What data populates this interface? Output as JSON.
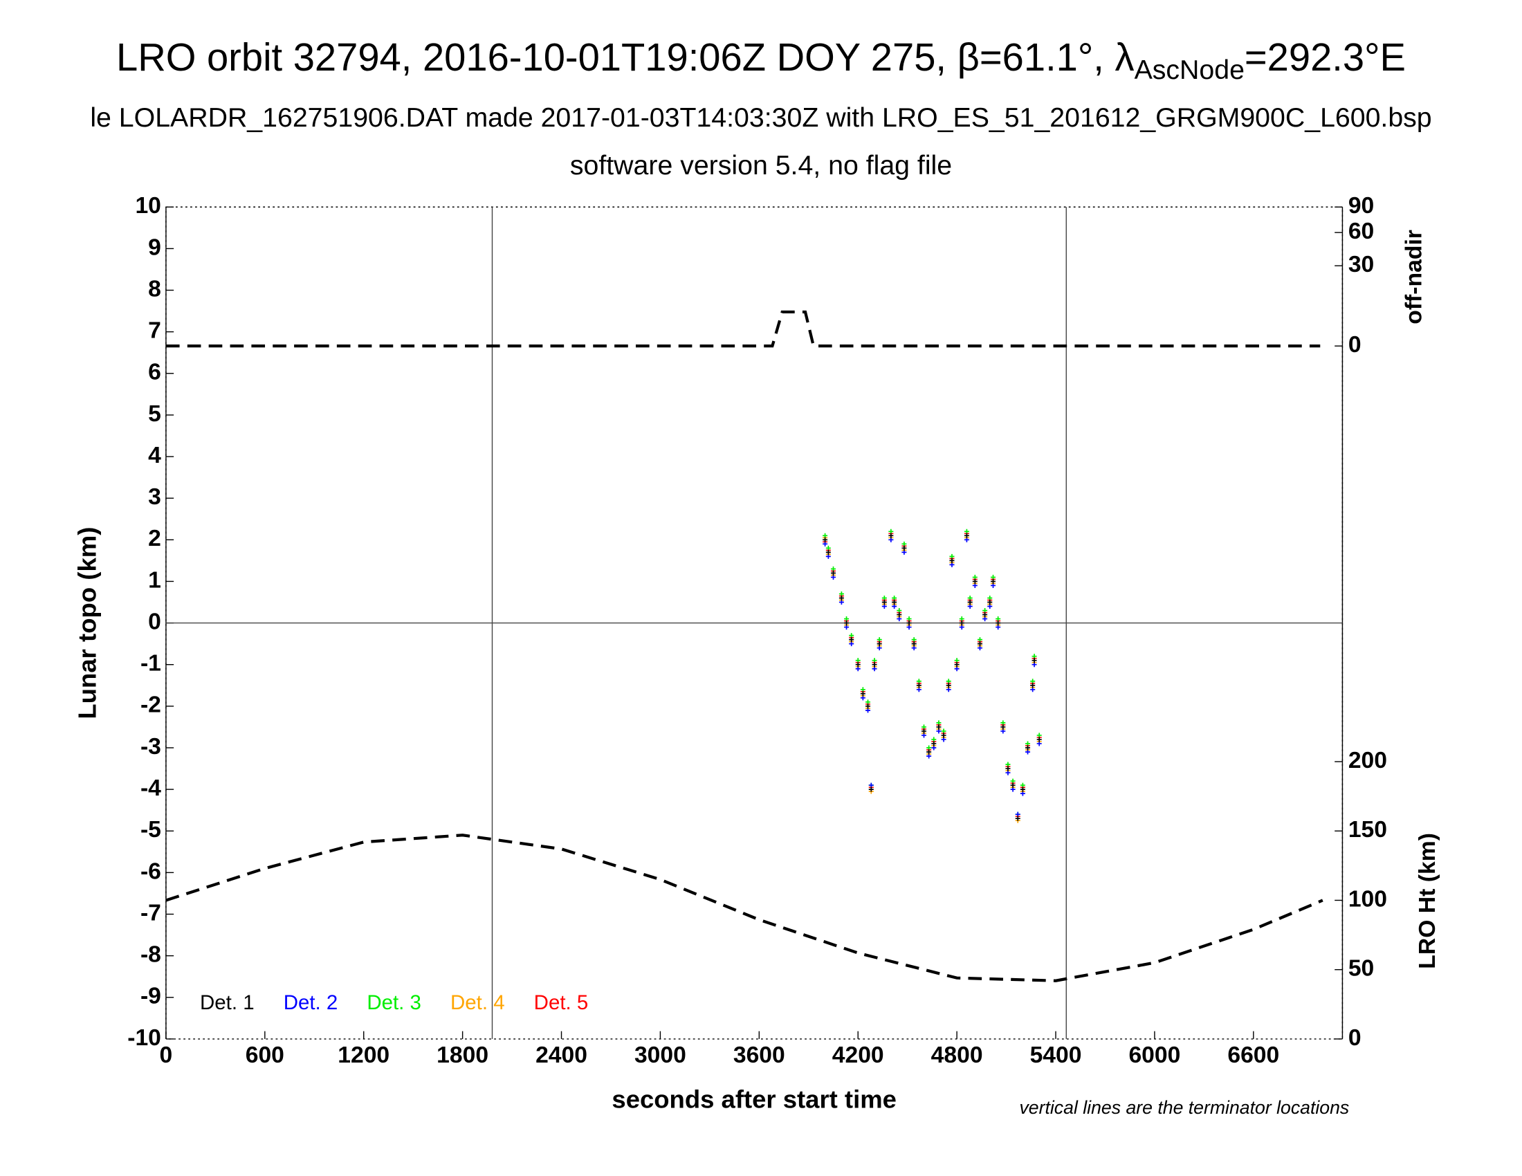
{
  "chart_data": {
    "type": "scatter",
    "title": {
      "main": "LRO orbit 32794, 2016-10-01T19:06Z DOY 275, β=61.1°, λ",
      "sub": "AscNode",
      "end": "=292.3°E"
    },
    "subtitle": "le LOLARDR_162751906.DAT made 2017-01-03T14:03:30Z with LRO_ES_51_201612_GRGM900C_L600.bsp",
    "subtitle2": "software version 5.4, no flag file",
    "xlabel": "seconds after start time",
    "ylabel": "Lunar topo (km)",
    "y2label": "off-nadir",
    "y3label": "LRO Ht (km)",
    "note": "vertical lines are the terminator locations",
    "xlim": [
      0,
      7140
    ],
    "xticks": [
      0,
      600,
      1200,
      1800,
      2400,
      3000,
      3600,
      4200,
      4800,
      5400,
      6000,
      6600
    ],
    "ylim": [
      -10,
      10
    ],
    "yticks": [
      -10,
      -9,
      -8,
      -7,
      -6,
      -5,
      -4,
      -3,
      -2,
      -1,
      0,
      1,
      2,
      3,
      4,
      5,
      6,
      7,
      8,
      9,
      10
    ],
    "y2lim": [
      0,
      90
    ],
    "y2ticks": [
      0,
      30,
      60,
      90
    ],
    "y2scale": "sqrt",
    "y3lim": [
      0,
      600
    ],
    "y3ticks": [
      0,
      50,
      100,
      150,
      200
    ],
    "terminators": [
      1980,
      5464
    ],
    "hlines": [
      0
    ],
    "x": [
      4000,
      4020,
      4050,
      4100,
      4130,
      4160,
      4200,
      4230,
      4260,
      4280,
      4300,
      4330,
      4360,
      4400,
      4420,
      4450,
      4480,
      4510,
      4540,
      4570,
      4600,
      4630,
      4660,
      4690,
      4720,
      4750,
      4770,
      4800,
      4830,
      4860,
      4880,
      4910,
      4940,
      4970,
      5000,
      5020,
      5050,
      5080,
      5110,
      5140,
      5170,
      5200,
      5230,
      5260,
      5270,
      5300
    ],
    "series": [
      {
        "name": "Det. 1",
        "color": "#000000",
        "values": [
          2.0,
          1.7,
          1.2,
          0.6,
          0.0,
          -0.4,
          -1.0,
          -1.7,
          -2.0,
          -4.0,
          -1.0,
          -0.5,
          0.5,
          2.1,
          0.5,
          0.2,
          1.8,
          0.0,
          -0.5,
          -1.5,
          -2.6,
          -3.1,
          -2.9,
          -2.5,
          -2.7,
          -1.5,
          1.5,
          -1.0,
          0.0,
          2.1,
          0.5,
          1.0,
          -0.5,
          0.2,
          0.5,
          1.0,
          0.0,
          -2.5,
          -3.5,
          -3.9,
          -4.7,
          -4.0,
          -3.0,
          -1.5,
          -0.9,
          -2.8
        ]
      },
      {
        "name": "Det. 2",
        "color": "#0000ff",
        "values": [
          1.9,
          1.6,
          1.1,
          0.5,
          -0.1,
          -0.5,
          -1.1,
          -1.8,
          -2.1,
          -3.9,
          -1.1,
          -0.6,
          0.4,
          2.0,
          0.4,
          0.1,
          1.7,
          -0.1,
          -0.6,
          -1.6,
          -2.7,
          -3.2,
          -3.0,
          -2.6,
          -2.8,
          -1.6,
          1.4,
          -1.1,
          -0.1,
          2.0,
          0.4,
          0.9,
          -0.6,
          0.1,
          0.4,
          0.9,
          -0.1,
          -2.6,
          -3.6,
          -4.0,
          -4.6,
          -4.1,
          -3.1,
          -1.6,
          -1.0,
          -2.9
        ]
      },
      {
        "name": "Det. 3",
        "color": "#00ee00",
        "values": [
          2.1,
          1.8,
          1.3,
          0.7,
          0.1,
          -0.3,
          -0.9,
          -1.6,
          -1.9,
          -3.9,
          -0.9,
          -0.4,
          0.6,
          2.2,
          0.6,
          0.3,
          1.9,
          0.1,
          -0.4,
          -1.4,
          -2.5,
          -3.0,
          -2.8,
          -2.4,
          -2.6,
          -1.4,
          1.6,
          -0.9,
          0.1,
          2.2,
          0.6,
          1.1,
          -0.4,
          0.3,
          0.6,
          1.1,
          0.1,
          -2.4,
          -3.4,
          -3.8,
          -4.6,
          -3.9,
          -2.9,
          -1.4,
          -0.8,
          -2.7
        ]
      },
      {
        "name": "Det. 4",
        "color": "#ffa500",
        "values": [
          2.05,
          1.65,
          1.15,
          0.55,
          -0.05,
          -0.45,
          -1.05,
          -1.75,
          -2.05,
          -4.05,
          -1.05,
          -0.55,
          0.45,
          2.05,
          0.45,
          0.15,
          1.75,
          -0.05,
          -0.55,
          -1.55,
          -2.65,
          -3.15,
          -2.95,
          -2.55,
          -2.75,
          -1.55,
          1.45,
          -1.05,
          -0.05,
          2.05,
          0.45,
          0.95,
          -0.55,
          0.15,
          0.45,
          0.95,
          -0.05,
          -2.55,
          -3.55,
          -3.95,
          -4.75,
          -4.05,
          -3.05,
          -1.55,
          -0.95,
          -2.85
        ]
      },
      {
        "name": "Det. 5",
        "color": "#ff0000",
        "values": [
          1.95,
          1.75,
          1.25,
          0.65,
          0.05,
          -0.35,
          -0.95,
          -1.65,
          -1.95,
          -3.95,
          -0.95,
          -0.45,
          0.55,
          2.15,
          0.55,
          0.25,
          1.85,
          0.05,
          -0.45,
          -1.45,
          -2.55,
          -3.05,
          -2.85,
          -2.45,
          -2.65,
          -1.45,
          1.55,
          -0.95,
          0.05,
          2.15,
          0.55,
          1.05,
          -0.45,
          0.25,
          0.55,
          1.05,
          0.05,
          -2.45,
          -3.45,
          -3.85,
          -4.65,
          -3.95,
          -2.95,
          -1.45,
          -0.85,
          -2.75
        ]
      }
    ],
    "lines": [
      {
        "axis": "y2",
        "x": [
          0,
          3680,
          3740,
          3880,
          3930,
          7005
        ],
        "values": [
          0,
          0,
          5.4,
          5.4,
          0,
          0
        ]
      },
      {
        "axis": "y3",
        "x": [
          0,
          600,
          1200,
          1800,
          2400,
          3000,
          3600,
          4200,
          4800,
          5400,
          6000,
          6600,
          7020
        ],
        "values": [
          100,
          123,
          142,
          147,
          137,
          115,
          86,
          62,
          44,
          42,
          55,
          79,
          100
        ]
      }
    ]
  }
}
